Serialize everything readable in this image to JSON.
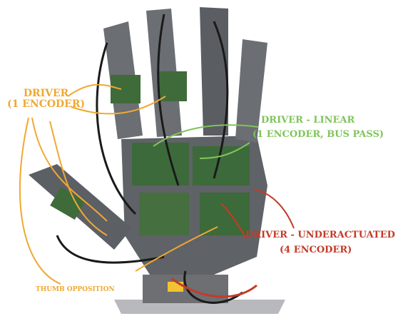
{
  "colors": {
    "orange": "#f0a832",
    "green": "#7fc45a",
    "red": "#c43b27",
    "plastic": "#6b6e73",
    "plastic_dark": "#4a4c50",
    "pcb": "#3f6b3a",
    "base": "#7a7c80"
  },
  "labels": {
    "driver_line1": "DRIVER",
    "driver_line2": "(1 ENCODER)",
    "linear_line1": "DRIVER - LINEAR",
    "linear_line2": "(1 ENCODER, BUS PASS)",
    "under_line1": "DRIVER - UNDERACTUATED",
    "under_line2": "(4 ENCODER)",
    "thumb": "THUMB OPPOSITION"
  }
}
